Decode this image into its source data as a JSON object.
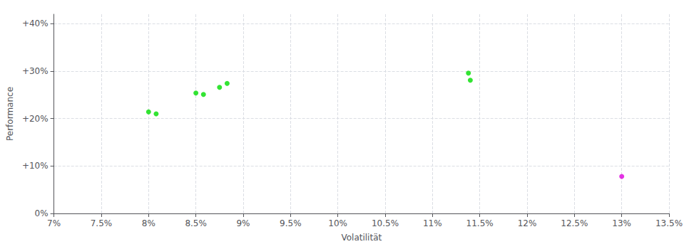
{
  "chart_data": {
    "type": "scatter",
    "xlabel": "Volatilität",
    "ylabel": "Performance",
    "xlim": [
      0.07,
      0.135
    ],
    "ylim": [
      0.0,
      0.42
    ],
    "xticks": [
      {
        "value": 0.07,
        "label": "7%"
      },
      {
        "value": 0.075,
        "label": "7.5%"
      },
      {
        "value": 0.08,
        "label": "8%"
      },
      {
        "value": 0.085,
        "label": "8.5%"
      },
      {
        "value": 0.09,
        "label": "9%"
      },
      {
        "value": 0.095,
        "label": "9.5%"
      },
      {
        "value": 0.1,
        "label": "10%"
      },
      {
        "value": 0.105,
        "label": "10.5%"
      },
      {
        "value": 0.11,
        "label": "11%"
      },
      {
        "value": 0.115,
        "label": "11.5%"
      },
      {
        "value": 0.12,
        "label": "12%"
      },
      {
        "value": 0.125,
        "label": "12.5%"
      },
      {
        "value": 0.13,
        "label": "13%"
      },
      {
        "value": 0.135,
        "label": "13.5%"
      }
    ],
    "yticks": [
      {
        "value": 0.0,
        "label": "0%"
      },
      {
        "value": 0.1,
        "label": "+10%"
      },
      {
        "value": 0.2,
        "label": "+20%"
      },
      {
        "value": 0.3,
        "label": "+30%"
      },
      {
        "value": 0.4,
        "label": "+40%"
      }
    ],
    "grid": true,
    "series": [
      {
        "color": "#00dd00",
        "x": [
          0.08,
          0.0808,
          0.085,
          0.0858,
          0.0875,
          0.0883,
          0.1138,
          0.114
        ],
        "values": [
          0.214,
          0.21,
          0.254,
          0.251,
          0.266,
          0.274,
          0.296,
          0.281
        ]
      },
      {
        "color": "#dd00dd",
        "x": [
          0.13
        ],
        "values": [
          0.078
        ]
      }
    ]
  }
}
